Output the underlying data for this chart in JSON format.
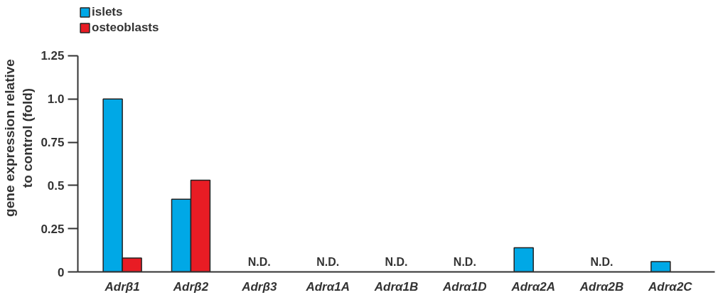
{
  "chart_data": {
    "type": "bar",
    "ylabel": "gene expression relative to control (fold)",
    "categories": [
      "Adrβ1",
      "Adrβ2",
      "Adrβ3",
      "Adrα1A",
      "Adrα1B",
      "Adrα1D",
      "Adrα2A",
      "Adrα2B",
      "Adrα2C"
    ],
    "series": [
      {
        "name": "islets",
        "color": "#00a8e6",
        "values": [
          1.0,
          0.42,
          null,
          null,
          null,
          null,
          0.14,
          null,
          0.06
        ]
      },
      {
        "name": "osteoblasts",
        "color": "#e81c24",
        "values": [
          0.08,
          0.53,
          null,
          null,
          null,
          null,
          null,
          null,
          null
        ]
      }
    ],
    "ylim": [
      0,
      1.25
    ],
    "yticks": [
      0,
      0.25,
      0.5,
      0.75,
      {
        "value": 1.0,
        "label": "1.0"
      },
      1.25
    ],
    "annotations": [
      "N.D.",
      "N.D.",
      "N.D.",
      "N.D.",
      "N.D."
    ],
    "legend": "top left",
    "grid": false
  }
}
